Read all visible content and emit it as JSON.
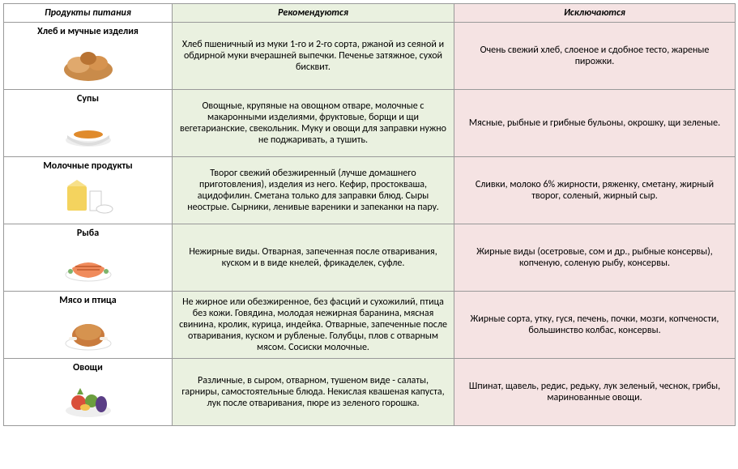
{
  "headers": {
    "products": "Продукты питания",
    "recommended": "Рекомендуются",
    "excluded": "Исключаются"
  },
  "colors": {
    "rec_bg": "#eaf1e0",
    "exc_bg": "#f5e3e3",
    "border": "#999999"
  },
  "rows": [
    {
      "category": "Хлеб и мучные изделия",
      "icon": "bread",
      "recommended": "Хлеб пшеничный из муки 1-го и 2-го сорта, ржаной из сеяной и обдирной муки вчерашней выпечки. Печенье затяжное, сухой бисквит.",
      "excluded": "Очень свежий хлеб, слоеное и сдобное тесто, жареные пирожки."
    },
    {
      "category": "Супы",
      "icon": "soup",
      "recommended": "Овощные, крупяные на овощном отваре, молочные с макаронными изделиями, фруктовые, борщи и щи вегетарианские, свекольник. Муку и овощи для заправки нужно не поджаривать, а тушить.",
      "excluded": "Мясные, рыбные и грибные бульоны, окрошку, щи зеленые."
    },
    {
      "category": "Молочные продукты",
      "icon": "dairy",
      "recommended": "Творог свежий обезжиренный (лучше домашнего приготовления), изделия из него. Кефир, простокваша, ацидофилин. Сметана только для заправки блюд. Сыры неострые. Сырники, ленивые вареники и запеканки на пару.",
      "excluded": "Сливки, молоко 6% жирности, ряженку, сметану, жирный творог, соленый, жирный сыр."
    },
    {
      "category": "Рыба",
      "icon": "fish",
      "recommended": "Нежирные виды. Отварная, запеченная после отваривания, куском и в виде кнелей, фрикаделек, суфле.",
      "excluded": "Жирные виды (осетровые, сом и др., рыбные консервы), копченую, соленую рыбу, консервы."
    },
    {
      "category": "Мясо и птица",
      "icon": "meat",
      "recommended": "Не жирное или обезжиренное, без фасций и сухожилий, птица без кожи. Говядина, молодая нежирная баранина, мясная свинина, кролик, курица, индейка. Отварные, запеченные после отваривания, куском и рубленые. Голубцы, плов с отварным мясом. Сосиски молочные.",
      "excluded": "Жирные сорта, утку, гуся, печень, почки, мозги, копчености, большинство колбас, консервы."
    },
    {
      "category": "Овощи",
      "icon": "vegetables",
      "recommended": "Различные, в сыром, отварном, тушеном виде - салаты, гарниры, самостоятельные блюда. Некислая квашеная капуста, лук после отваривания, пюре из зеленого горошка.",
      "excluded": "Шпинат, щавель, редис, редьку, лук зеленый, чеснок, грибы, маринованные овощи."
    }
  ]
}
